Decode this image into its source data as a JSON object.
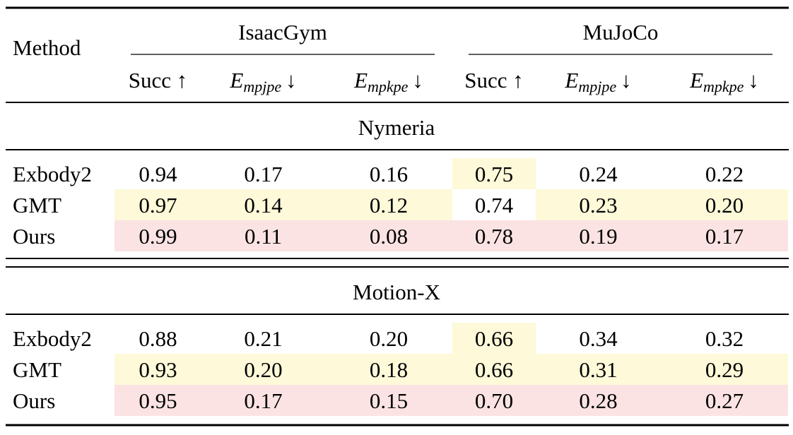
{
  "table": {
    "method_header": "Method",
    "groups": [
      "IsaacGym",
      "MuJoCo"
    ],
    "columns": [
      {
        "text": "Succ ↑"
      },
      {
        "base": "E",
        "sub": "mpjpe",
        "arrow": "↓"
      },
      {
        "base": "E",
        "sub": "mpkpe",
        "arrow": "↓"
      },
      {
        "text": "Succ ↑"
      },
      {
        "base": "E",
        "sub": "mpjpe",
        "arrow": "↓"
      },
      {
        "base": "E",
        "sub": "mpkpe",
        "arrow": "↓"
      }
    ],
    "highlight_colors": {
      "second": "#fdf9d9",
      "best": "#fbe3e3"
    },
    "sections": [
      {
        "title": "Nymeria",
        "rows": [
          {
            "method": "Exbody2",
            "cells": [
              "0.94",
              "0.17",
              "0.16",
              "0.75",
              "0.24",
              "0.22"
            ],
            "highlight": [
              [
                3,
                "second"
              ]
            ]
          },
          {
            "method": "GMT",
            "cells": [
              "0.97",
              "0.14",
              "0.12",
              "0.74",
              "0.23",
              "0.20"
            ],
            "highlight": [
              [
                0,
                "second"
              ],
              [
                1,
                "second"
              ],
              [
                2,
                "second"
              ],
              [
                4,
                "second"
              ],
              [
                5,
                "second"
              ]
            ]
          },
          {
            "method": "Ours",
            "cells": [
              "0.99",
              "0.11",
              "0.08",
              "0.78",
              "0.19",
              "0.17"
            ],
            "highlight": [
              [
                0,
                "best"
              ],
              [
                1,
                "best"
              ],
              [
                2,
                "best"
              ],
              [
                3,
                "best"
              ],
              [
                4,
                "best"
              ],
              [
                5,
                "best"
              ]
            ]
          }
        ]
      },
      {
        "title": "Motion-X",
        "rows": [
          {
            "method": "Exbody2",
            "cells": [
              "0.88",
              "0.21",
              "0.20",
              "0.66",
              "0.34",
              "0.32"
            ],
            "highlight": [
              [
                3,
                "second"
              ]
            ]
          },
          {
            "method": "GMT",
            "cells": [
              "0.93",
              "0.20",
              "0.18",
              "0.66",
              "0.31",
              "0.29"
            ],
            "highlight": [
              [
                0,
                "second"
              ],
              [
                1,
                "second"
              ],
              [
                2,
                "second"
              ],
              [
                3,
                "second"
              ],
              [
                4,
                "second"
              ],
              [
                5,
                "second"
              ]
            ]
          },
          {
            "method": "Ours",
            "cells": [
              "0.95",
              "0.17",
              "0.15",
              "0.70",
              "0.28",
              "0.27"
            ],
            "highlight": [
              [
                0,
                "best"
              ],
              [
                1,
                "best"
              ],
              [
                2,
                "best"
              ],
              [
                3,
                "best"
              ],
              [
                4,
                "best"
              ],
              [
                5,
                "best"
              ]
            ]
          }
        ]
      }
    ]
  }
}
